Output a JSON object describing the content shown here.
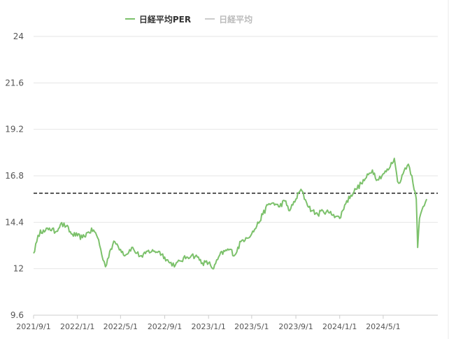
{
  "legend": {
    "items": [
      {
        "label": "日経平均PER",
        "color": "#7cc16b",
        "active": true
      },
      {
        "label": "日経平均",
        "color": "#cccccc",
        "active": false
      }
    ]
  },
  "chart_data": {
    "type": "line",
    "title": "",
    "xlabel": "",
    "ylabel": "",
    "ylim": [
      9.6,
      24
    ],
    "yticks": [
      "24",
      "21.6",
      "19.2",
      "16.8",
      "14.4",
      "12",
      "9.6"
    ],
    "xticks": [
      "2021/9/1",
      "2022/1/1",
      "2022/5/1",
      "2022/9/1",
      "2023/1/1",
      "2023/5/1",
      "2023/9/1",
      "2024/1/1",
      "2024/5/1"
    ],
    "xlim": [
      "2021/9/1",
      "2024/9/30"
    ],
    "grid": true,
    "reference_line": {
      "value": 15.9,
      "style": "dashed",
      "color": "#222222"
    },
    "series": [
      {
        "name": "日経平均PER",
        "color": "#7cc16b",
        "points": [
          [
            "2021/9/1",
            12.8
          ],
          [
            "2021/9/10",
            13.4
          ],
          [
            "2021/9/20",
            14.0
          ],
          [
            "2021/10/1",
            13.9
          ],
          [
            "2021/10/15",
            14.1
          ],
          [
            "2021/11/1",
            13.9
          ],
          [
            "2021/11/15",
            14.3
          ],
          [
            "2021/12/1",
            14.2
          ],
          [
            "2021/12/15",
            13.8
          ],
          [
            "2022/1/1",
            13.7
          ],
          [
            "2022/1/15",
            13.6
          ],
          [
            "2022/2/1",
            13.9
          ],
          [
            "2022/2/15",
            14.0
          ],
          [
            "2022/3/1",
            13.5
          ],
          [
            "2022/3/10",
            12.7
          ],
          [
            "2022/3/20",
            12.1
          ],
          [
            "2022/4/1",
            12.9
          ],
          [
            "2022/4/15",
            13.4
          ],
          [
            "2022/5/1",
            13.0
          ],
          [
            "2022/5/15",
            12.7
          ],
          [
            "2022/6/1",
            13.1
          ],
          [
            "2022/6/15",
            12.8
          ],
          [
            "2022/7/1",
            12.6
          ],
          [
            "2022/7/15",
            12.9
          ],
          [
            "2022/8/1",
            12.9
          ],
          [
            "2022/8/15",
            12.9
          ],
          [
            "2022/9/1",
            12.6
          ],
          [
            "2022/9/15",
            12.3
          ],
          [
            "2022/10/1",
            12.2
          ],
          [
            "2022/10/15",
            12.4
          ],
          [
            "2022/11/1",
            12.6
          ],
          [
            "2022/11/15",
            12.7
          ],
          [
            "2022/12/1",
            12.6
          ],
          [
            "2022/12/15",
            12.3
          ],
          [
            "2023/1/1",
            12.3
          ],
          [
            "2023/1/15",
            12.0
          ],
          [
            "2023/2/1",
            12.7
          ],
          [
            "2023/2/15",
            12.9
          ],
          [
            "2023/3/1",
            13.0
          ],
          [
            "2023/3/15",
            12.7
          ],
          [
            "2023/4/1",
            13.4
          ],
          [
            "2023/4/15",
            13.6
          ],
          [
            "2023/5/1",
            13.8
          ],
          [
            "2023/5/15",
            14.2
          ],
          [
            "2023/6/1",
            14.8
          ],
          [
            "2023/6/15",
            15.3
          ],
          [
            "2023/7/1",
            15.4
          ],
          [
            "2023/7/15",
            15.2
          ],
          [
            "2023/8/1",
            15.5
          ],
          [
            "2023/8/15",
            15.0
          ],
          [
            "2023/9/1",
            15.6
          ],
          [
            "2023/9/15",
            16.1
          ],
          [
            "2023/10/1",
            15.4
          ],
          [
            "2023/10/15",
            15.0
          ],
          [
            "2023/11/1",
            14.8
          ],
          [
            "2023/11/15",
            15.0
          ],
          [
            "2023/12/1",
            14.9
          ],
          [
            "2023/12/15",
            14.8
          ],
          [
            "2024/1/1",
            14.6
          ],
          [
            "2024/1/15",
            15.3
          ],
          [
            "2024/2/1",
            15.8
          ],
          [
            "2024/2/15",
            16.1
          ],
          [
            "2024/3/1",
            16.4
          ],
          [
            "2024/3/15",
            16.7
          ],
          [
            "2024/4/1",
            17.1
          ],
          [
            "2024/4/15",
            16.6
          ],
          [
            "2024/5/1",
            16.9
          ],
          [
            "2024/5/15",
            17.1
          ],
          [
            "2024/6/1",
            17.7
          ],
          [
            "2024/6/10",
            16.5
          ],
          [
            "2024/6/20",
            16.6
          ],
          [
            "2024/7/1",
            17.2
          ],
          [
            "2024/7/10",
            17.4
          ],
          [
            "2024/7/20",
            16.8
          ],
          [
            "2024/8/1",
            15.6
          ],
          [
            "2024/8/5",
            13.1
          ],
          [
            "2024/8/10",
            14.6
          ],
          [
            "2024/8/20",
            15.2
          ],
          [
            "2024/8/30",
            15.6
          ]
        ]
      }
    ]
  }
}
